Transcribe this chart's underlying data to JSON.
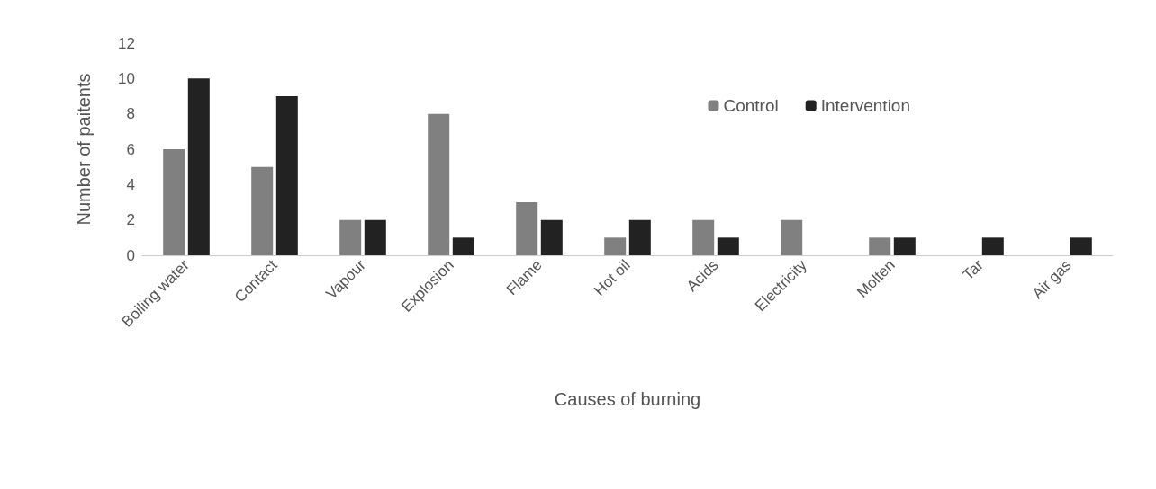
{
  "chart_data": {
    "type": "bar",
    "xlabel": "Causes of burning",
    "ylabel": "Number of paitents",
    "categories": [
      "Boiling water",
      "Contact",
      "Vapour",
      "Explosion",
      "Flame",
      "Hot oil",
      "Acids",
      "Electricity",
      "Molten",
      "Tar",
      "Air gas"
    ],
    "series": [
      {
        "name": "Control",
        "color": "#808080",
        "values": [
          6,
          5,
          2,
          8,
          3,
          1,
          2,
          2,
          1,
          0,
          0
        ]
      },
      {
        "name": "Intervention",
        "color": "#222222",
        "values": [
          10,
          9,
          2,
          1,
          2,
          2,
          1,
          0,
          1,
          1,
          1
        ]
      }
    ],
    "ylim": [
      0,
      12
    ],
    "yticks": [
      0,
      2,
      4,
      6,
      8,
      10,
      12
    ],
    "grid": false,
    "legend": "top right"
  }
}
